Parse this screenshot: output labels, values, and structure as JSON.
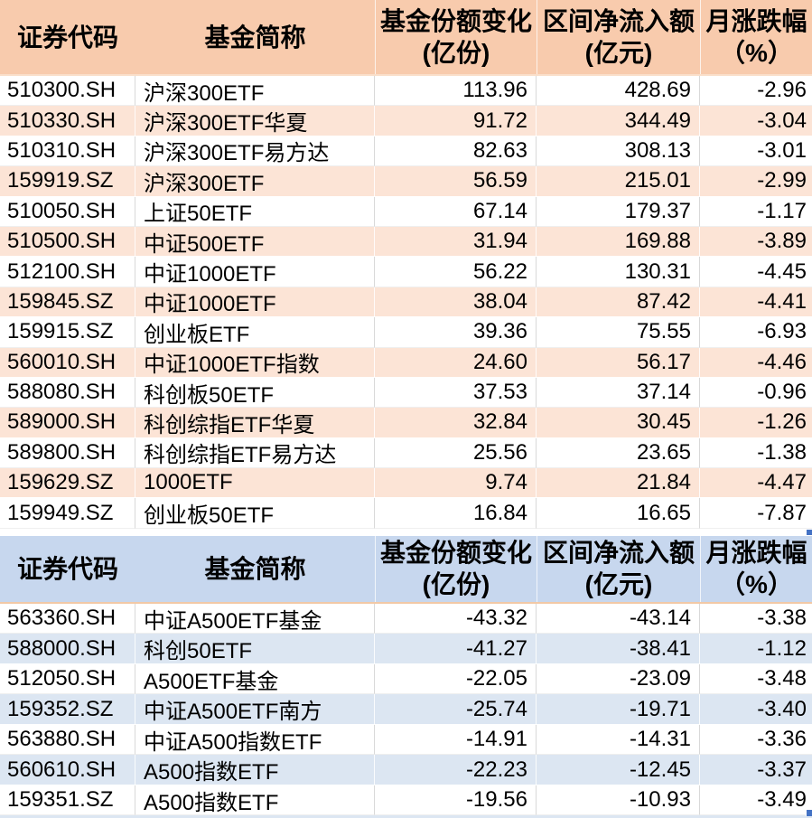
{
  "colors": {
    "inflow_header_bg": "#f8cbad",
    "inflow_row_alt_bg": "#fce4d6",
    "outflow_header_bg": "#c7d7ee",
    "outflow_row_alt_bg": "#dce6f2",
    "selection_handle": "#4472c4",
    "grid_line": "#d9d9d9",
    "text": "#000000"
  },
  "columns": [
    {
      "label": "证券代码",
      "sub": ""
    },
    {
      "label": "基金简称",
      "sub": ""
    },
    {
      "label": "基金份额变化",
      "sub": "(亿份)"
    },
    {
      "label": "区间净流入额",
      "sub": "(亿元)"
    },
    {
      "label": "月涨跌幅",
      "sub": "（%）"
    }
  ],
  "tables": {
    "inflow": {
      "rows": [
        {
          "code": "510300.SH",
          "name": "沪深300ETF",
          "share_change": "113.96",
          "net_inflow": "428.69",
          "monthly_change": "-2.96"
        },
        {
          "code": "510330.SH",
          "name": "沪深300ETF华夏",
          "share_change": "91.72",
          "net_inflow": "344.49",
          "monthly_change": "-3.04"
        },
        {
          "code": "510310.SH",
          "name": "沪深300ETF易方达",
          "share_change": "82.63",
          "net_inflow": "308.13",
          "monthly_change": "-3.01"
        },
        {
          "code": "159919.SZ",
          "name": "沪深300ETF",
          "share_change": "56.59",
          "net_inflow": "215.01",
          "monthly_change": "-2.99"
        },
        {
          "code": "510050.SH",
          "name": "上证50ETF",
          "share_change": "67.14",
          "net_inflow": "179.37",
          "monthly_change": "-1.17"
        },
        {
          "code": "510500.SH",
          "name": "中证500ETF",
          "share_change": "31.94",
          "net_inflow": "169.88",
          "monthly_change": "-3.89"
        },
        {
          "code": "512100.SH",
          "name": "中证1000ETF",
          "share_change": "56.22",
          "net_inflow": "130.31",
          "monthly_change": "-4.45"
        },
        {
          "code": "159845.SZ",
          "name": "中证1000ETF",
          "share_change": "38.04",
          "net_inflow": "87.42",
          "monthly_change": "-4.41"
        },
        {
          "code": "159915.SZ",
          "name": "创业板ETF",
          "share_change": "39.36",
          "net_inflow": "75.55",
          "monthly_change": "-6.93"
        },
        {
          "code": "560010.SH",
          "name": "中证1000ETF指数",
          "share_change": "24.60",
          "net_inflow": "56.17",
          "monthly_change": "-4.46"
        },
        {
          "code": "588080.SH",
          "name": "科创板50ETF",
          "share_change": "37.53",
          "net_inflow": "37.14",
          "monthly_change": "-0.96"
        },
        {
          "code": "589000.SH",
          "name": "科创综指ETF华夏",
          "share_change": "32.84",
          "net_inflow": "30.45",
          "monthly_change": "-1.26"
        },
        {
          "code": "589800.SH",
          "name": "科创综指ETF易方达",
          "share_change": "25.56",
          "net_inflow": "23.65",
          "monthly_change": "-1.38"
        },
        {
          "code": "159629.SZ",
          "name": "1000ETF",
          "share_change": "9.74",
          "net_inflow": "21.84",
          "monthly_change": "-4.47"
        },
        {
          "code": "159949.SZ",
          "name": "创业板50ETF",
          "share_change": "16.84",
          "net_inflow": "16.65",
          "monthly_change": "-7.87"
        }
      ]
    },
    "outflow": {
      "rows": [
        {
          "code": "563360.SH",
          "name": "中证A500ETF基金",
          "share_change": "-43.32",
          "net_inflow": "-43.14",
          "monthly_change": "-3.38"
        },
        {
          "code": "588000.SH",
          "name": "科创50ETF",
          "share_change": "-41.27",
          "net_inflow": "-38.41",
          "monthly_change": "-1.12"
        },
        {
          "code": "512050.SH",
          "name": "A500ETF基金",
          "share_change": "-22.05",
          "net_inflow": "-23.09",
          "monthly_change": "-3.48"
        },
        {
          "code": "159352.SZ",
          "name": "中证A500ETF南方",
          "share_change": "-25.74",
          "net_inflow": "-19.71",
          "monthly_change": "-3.40"
        },
        {
          "code": "563880.SH",
          "name": "中证A500指数ETF",
          "share_change": "-14.91",
          "net_inflow": "-14.31",
          "monthly_change": "-3.36"
        },
        {
          "code": "560610.SH",
          "name": "A500指数ETF",
          "share_change": "-22.23",
          "net_inflow": "-12.45",
          "monthly_change": "-3.37"
        },
        {
          "code": "159351.SZ",
          "name": "A500指数ETF",
          "share_change": "-19.56",
          "net_inflow": "-10.93",
          "monthly_change": "-3.49"
        }
      ]
    }
  }
}
